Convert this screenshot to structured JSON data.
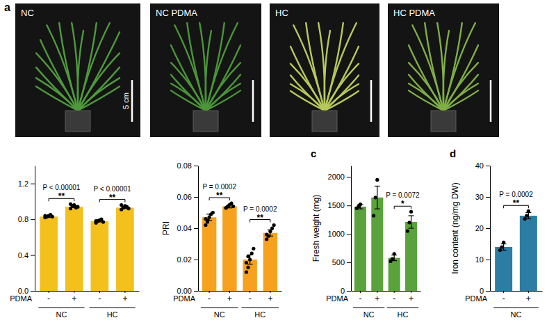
{
  "figure": {
    "panel_letter": "a",
    "scale_bar": "5 cm",
    "photos": [
      {
        "label": "NC"
      },
      {
        "label": "NC PDMA"
      },
      {
        "label": "HC"
      },
      {
        "label": "HC PDMA"
      }
    ]
  },
  "chart_data": [
    {
      "type": "bar",
      "x_label": "PDMA",
      "categories": [
        "-",
        "+",
        "-",
        "+"
      ],
      "groups": [
        "NC",
        "NC",
        "HC",
        "HC"
      ],
      "values": [
        0.83,
        0.94,
        0.78,
        0.93
      ],
      "errors": [
        0.01,
        0.01,
        0.01,
        0.01
      ],
      "points": [
        [
          0.82,
          0.83,
          0.84,
          0.85,
          0.83,
          0.84
        ],
        [
          0.92,
          0.95,
          0.96,
          0.93,
          0.94,
          0.97
        ],
        [
          0.76,
          0.78,
          0.79,
          0.8,
          0.77,
          0.78
        ],
        [
          0.91,
          0.93,
          0.95,
          0.94,
          0.92,
          0.96
        ]
      ],
      "color": "#f3c01c",
      "ylim": [
        0,
        1.4
      ],
      "yticks": [
        {
          "value": 0,
          "label": "0.0"
        },
        0.4,
        0.8,
        1.2
      ],
      "comparisons": [
        {
          "categories": [
            0,
            1
          ],
          "label": "P < 0.00001",
          "stars": "**"
        },
        {
          "categories": [
            2,
            3
          ],
          "label": "P < 0.00001",
          "stars": "**"
        }
      ]
    },
    {
      "type": "bar",
      "y_label": "PRI",
      "x_label": "PDMA",
      "categories": [
        "-",
        "+",
        "-",
        "+"
      ],
      "groups": [
        "NC",
        "NC",
        "HC",
        "HC"
      ],
      "values": [
        0.047,
        0.054,
        0.02,
        0.037
      ],
      "errors": [
        0.002,
        0.001,
        0.003,
        0.002
      ],
      "points": [
        [
          0.042,
          0.045,
          0.047,
          0.049,
          0.05,
          0.046,
          0.044
        ],
        [
          0.053,
          0.054,
          0.055,
          0.056,
          0.054,
          0.053
        ],
        [
          0.012,
          0.015,
          0.02,
          0.024,
          0.027,
          0.018,
          0.022
        ],
        [
          0.033,
          0.035,
          0.038,
          0.04,
          0.042,
          0.036
        ]
      ],
      "color": "#f6a21e",
      "ylim": [
        0,
        0.08
      ],
      "yticks": [
        {
          "value": 0,
          "label": "0.00"
        },
        0.02,
        0.04,
        0.06,
        0.08
      ],
      "comparisons": [
        {
          "categories": [
            0,
            1
          ],
          "label": "P = 0.0002",
          "stars": "**"
        },
        {
          "categories": [
            2,
            3
          ],
          "label": "P = 0.0002",
          "stars": "**"
        }
      ]
    },
    {
      "type": "bar",
      "panel_letter": "c",
      "y_label": "Fresh weight (mg)",
      "x_label": "PDMA",
      "categories": [
        "-",
        "+",
        "-",
        "+"
      ],
      "groups": [
        "NC",
        "NC",
        "HC",
        "HC"
      ],
      "values": [
        1480,
        1640,
        580,
        1210
      ],
      "errors": [
        40,
        200,
        50,
        110
      ],
      "points": [
        [
          1450,
          1480,
          1520
        ],
        [
          1320,
          1640,
          1950
        ],
        [
          520,
          560,
          650
        ],
        [
          1050,
          1200,
          1390
        ]
      ],
      "color": "#5aa33c",
      "ylim": [
        0,
        2200
      ],
      "yticks": [
        0,
        500,
        1000,
        1500,
        2000
      ],
      "comparisons": [
        {
          "categories": [
            2,
            3
          ],
          "label": "P = 0.0072",
          "stars": "*"
        }
      ]
    },
    {
      "type": "bar",
      "panel_letter": "d",
      "y_label": "Iron content (ng/mg DW)",
      "x_label": "PDMA",
      "categories": [
        "-",
        "+"
      ],
      "groups": [
        "NC",
        "NC"
      ],
      "values": [
        14,
        24
      ],
      "errors": [
        1,
        1
      ],
      "points": [
        [
          13,
          14,
          15.5
        ],
        [
          23,
          24,
          25.5
        ]
      ],
      "color": "#2b7da3",
      "ylim": [
        0,
        40
      ],
      "yticks": [
        0,
        10,
        20,
        30,
        40
      ],
      "comparisons": [
        {
          "categories": [
            0,
            1
          ],
          "label": "P = 0.0002",
          "stars": "**"
        }
      ]
    }
  ]
}
